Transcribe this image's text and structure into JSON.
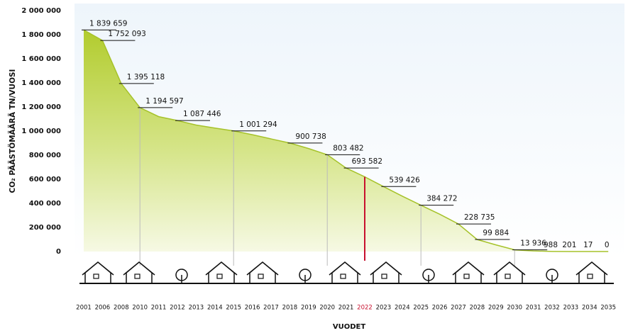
{
  "chart_data": {
    "type": "area",
    "ylabel": "CO₂ PÄÄSTÖMÄÄRÄ TN/VUOSI",
    "xlabel": "VUODET",
    "categories": [
      "2001",
      "2006",
      "2008",
      "2010",
      "2011",
      "2012",
      "2013",
      "2014",
      "2015",
      "2016",
      "2017",
      "2018",
      "2019",
      "2020",
      "2021",
      "2022",
      "2023",
      "2024",
      "2025",
      "2026",
      "2027",
      "2028",
      "2029",
      "2030",
      "2031",
      "2032",
      "2033",
      "2034",
      "2035"
    ],
    "values": [
      1839659,
      1752093,
      1395118,
      1194597,
      1120000,
      1087446,
      1050000,
      1025000,
      1001294,
      970000,
      935000,
      900738,
      855000,
      803482,
      693582,
      620000,
      539426,
      460000,
      384272,
      310000,
      228735,
      99884,
      55000,
      13936,
      5000,
      988,
      201,
      17,
      0
    ],
    "value_labels": [
      "1 839 659",
      "1 752 093",
      "1 395 118",
      "1 194 597",
      null,
      "1 087 446",
      null,
      null,
      "1 001 294",
      null,
      null,
      "900 738",
      null,
      "803 482",
      "693 582",
      null,
      "539 426",
      null,
      "384 272",
      null,
      "228 735",
      "99 884",
      null,
      "13 936",
      null,
      "988",
      "201",
      "17",
      "0"
    ],
    "color": "#a6c22a",
    "highlight": "2022",
    "highlight_color": "#c8102e",
    "ylim": [
      0,
      2000000
    ],
    "yticks": [
      0,
      {
        "value": 200000,
        "label": "200 000"
      },
      {
        "value": 400000,
        "label": "400 000"
      },
      {
        "value": 600000,
        "label": "600 000"
      },
      {
        "value": 800000,
        "label": "800 000"
      },
      {
        "value": 1000000,
        "label": "1 000 000"
      },
      {
        "value": 1200000,
        "label": "1 200 000"
      },
      {
        "value": 1400000,
        "label": "1 400 000"
      },
      {
        "value": 1600000,
        "label": "1 600 000"
      },
      {
        "value": 1800000,
        "label": "1 800 000"
      },
      {
        "value": 2000000,
        "label": "2 000 000"
      }
    ]
  }
}
